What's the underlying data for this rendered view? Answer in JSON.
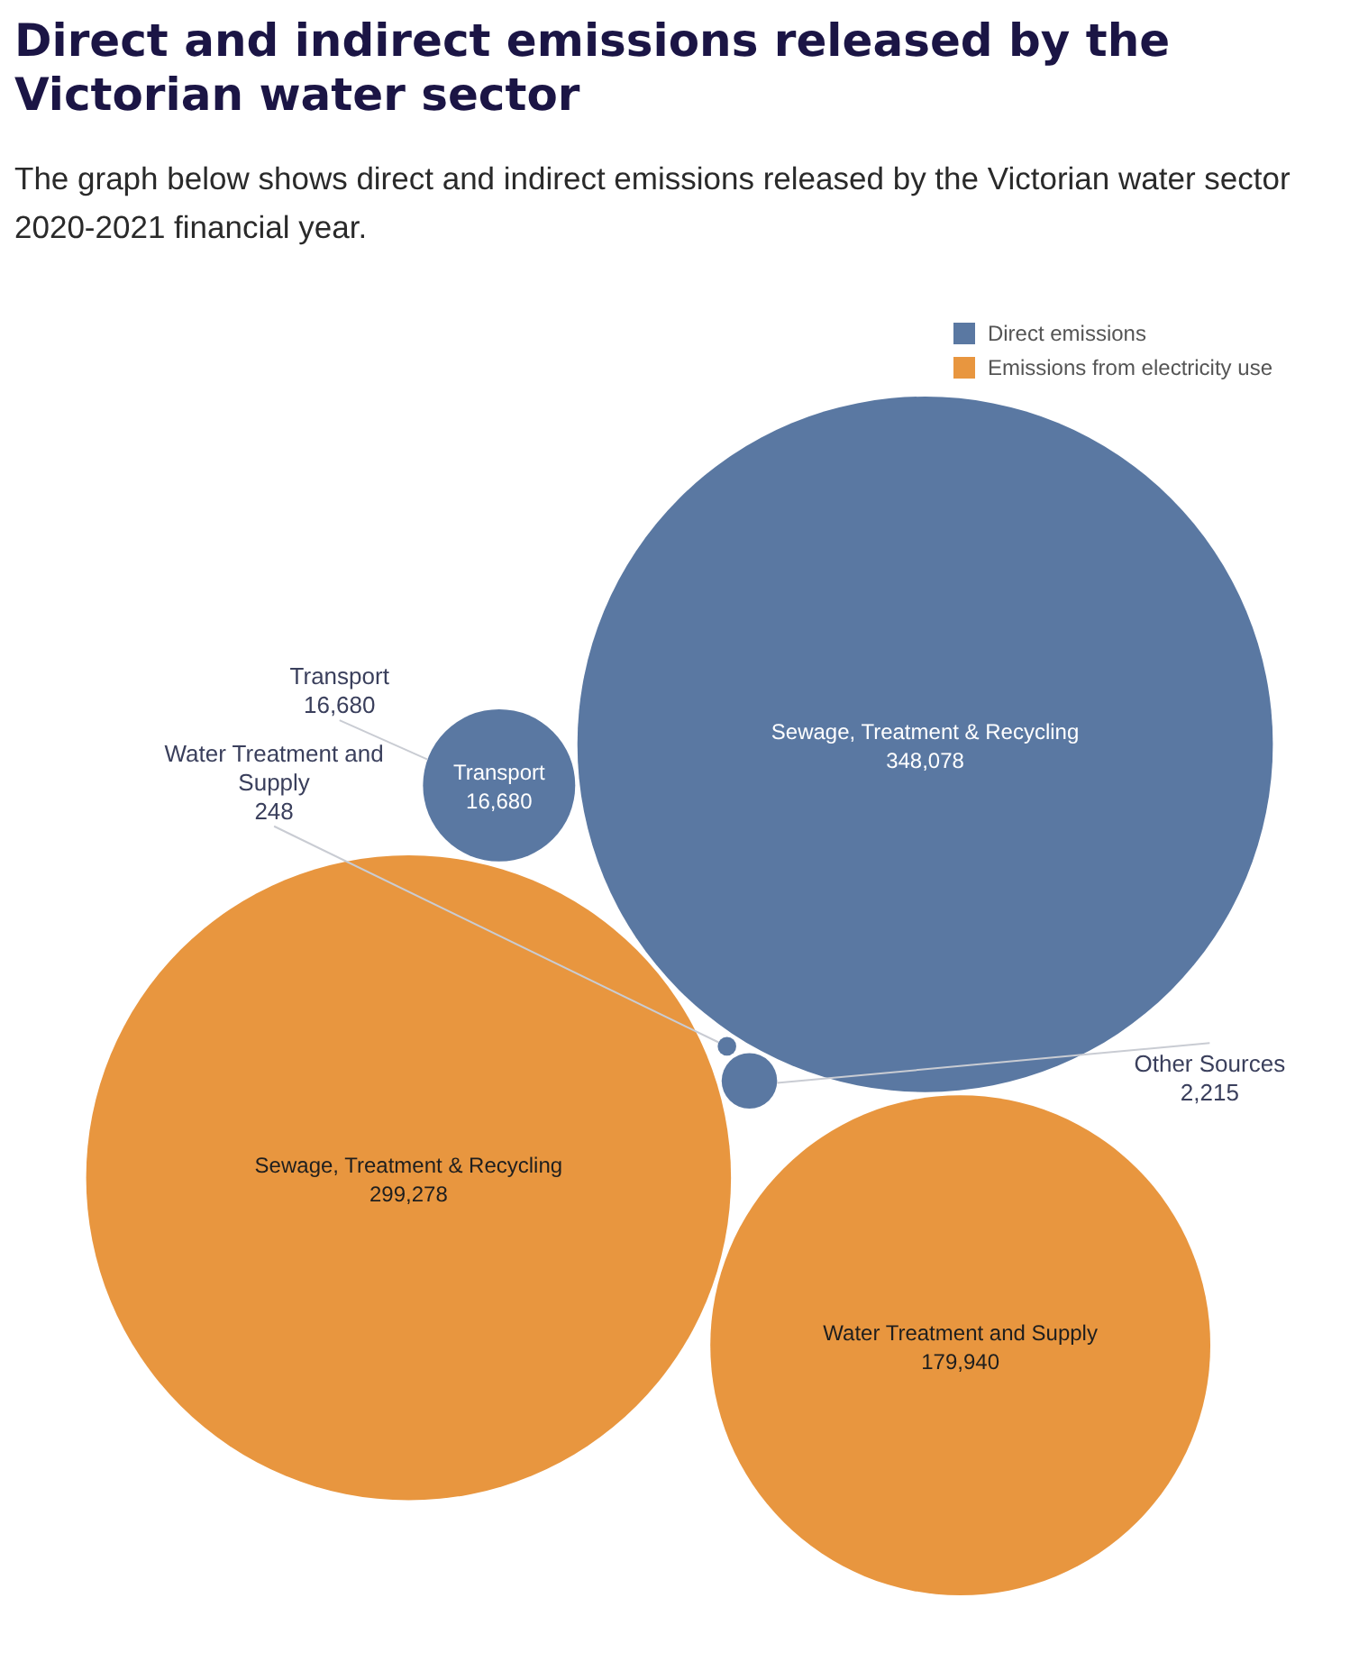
{
  "chart_data": {
    "type": "other",
    "title": "Direct and indirect emissions released by the Victorian water sector",
    "subtitle": "The graph below shows direct and indirect emissions released by the Victorian water sector 2020-2021 financial year.",
    "categories": [
      "Sewage, Treatment & Recycling",
      "Water Treatment and Supply",
      "Transport",
      "Other Sources"
    ],
    "series": [
      {
        "name": "Direct emissions",
        "color": "#5a78a2",
        "values": [
          348078,
          248,
          16680,
          2215
        ],
        "value_labels": [
          "348,078",
          "248",
          "16,680",
          "2,215"
        ]
      },
      {
        "name": "Emissions from electricity use",
        "color": "#e8963f",
        "values": [
          299278,
          179940,
          null,
          null
        ],
        "value_labels": [
          "299,278",
          "179,940",
          null,
          null
        ]
      }
    ],
    "legend": "top right",
    "annotations": [
      {
        "text": "Transport 16,680",
        "x": "Transport"
      }
    ]
  }
}
